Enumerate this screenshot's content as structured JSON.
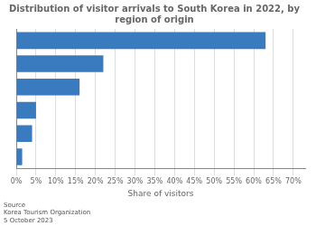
{
  "chart_data": {
    "type": "bar",
    "orientation": "horizontal",
    "title": "Distribution of visitor arrivals to South Korea in 2022, by region of origin",
    "categories": [
      null,
      null,
      null,
      null,
      null,
      null
    ],
    "values": [
      63.0,
      22.0,
      16.0,
      5.0,
      4.0,
      1.5
    ],
    "color": "#3a7abf",
    "xlabel": "Share of visitors",
    "xlim": [
      0,
      73
    ],
    "xticks": [
      {
        "value": 0,
        "label": "0%"
      },
      {
        "value": 5,
        "label": "5%"
      },
      {
        "value": 10,
        "label": "10%"
      },
      {
        "value": 15,
        "label": "15%"
      },
      {
        "value": 20,
        "label": "20%"
      },
      {
        "value": 25,
        "label": "25%"
      },
      {
        "value": 30,
        "label": "30%"
      },
      {
        "value": 35,
        "label": "35%"
      },
      {
        "value": 40,
        "label": "40%"
      },
      {
        "value": 45,
        "label": "45%"
      },
      {
        "value": 50,
        "label": "50%"
      },
      {
        "value": 55,
        "label": "55%"
      },
      {
        "value": 60,
        "label": "60%"
      },
      {
        "value": 65,
        "label": "65%"
      },
      {
        "value": 70,
        "label": "70%"
      }
    ],
    "grid": true,
    "annotations": [
      "Source\nKorea Tourism Organization\n5 October 2023"
    ]
  }
}
